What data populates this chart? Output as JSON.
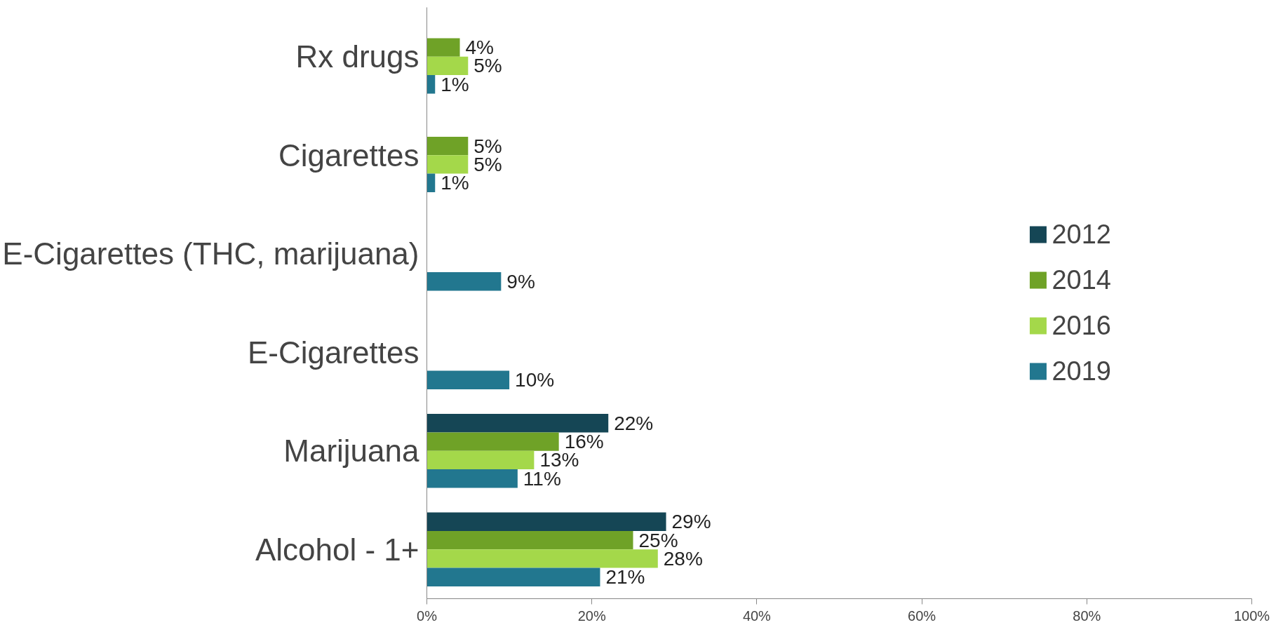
{
  "chart_data": {
    "type": "bar",
    "orientation": "horizontal",
    "categories": [
      "Rx drugs",
      "Cigarettes",
      "E-Cigarettes (THC, marijuana)",
      "E-Cigarettes",
      "Marijuana",
      "Alcohol - 1+"
    ],
    "series": [
      {
        "name": "2012",
        "color": "#154655",
        "values": [
          null,
          null,
          null,
          null,
          22,
          29
        ],
        "value_labels": [
          null,
          null,
          null,
          null,
          "22%",
          "29%"
        ]
      },
      {
        "name": "2014",
        "color": "#6fa227",
        "values": [
          4,
          5,
          null,
          null,
          16,
          25
        ],
        "value_labels": [
          "4%",
          "5%",
          null,
          null,
          "16%",
          "25%"
        ]
      },
      {
        "name": "2016",
        "color": "#a4d84a",
        "values": [
          5,
          5,
          null,
          null,
          13,
          28
        ],
        "value_labels": [
          "5%",
          "5%",
          null,
          null,
          "13%",
          "28%"
        ]
      },
      {
        "name": "2019",
        "color": "#22778f",
        "values": [
          1,
          1,
          9,
          10,
          11,
          21
        ],
        "value_labels": [
          "1%",
          "1%",
          "9%",
          "10%",
          "11%",
          "21%"
        ]
      }
    ],
    "xlim": [
      0,
      100
    ],
    "xticks": [
      {
        "value": 0,
        "label": "0%"
      },
      {
        "value": 20,
        "label": "20%"
      },
      {
        "value": 40,
        "label": "40%"
      },
      {
        "value": 60,
        "label": "60%"
      },
      {
        "value": 80,
        "label": "80%"
      },
      {
        "value": 100,
        "label": "100%"
      }
    ],
    "grid": false,
    "legend": "right"
  }
}
